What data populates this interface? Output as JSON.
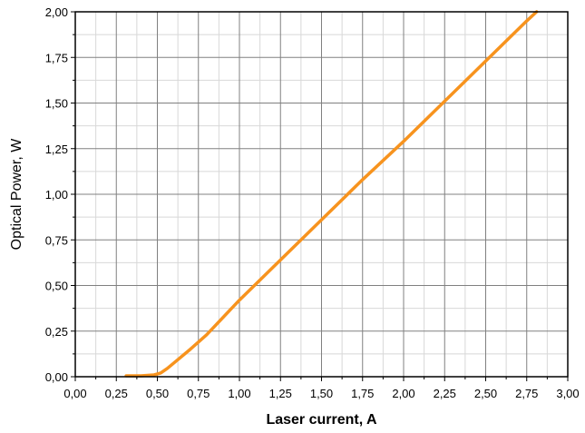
{
  "chart_data": {
    "type": "line",
    "xlabel": "Laser current, A",
    "ylabel": "Optical Power, W",
    "xlim": [
      0,
      3
    ],
    "ylim": [
      0,
      2
    ],
    "x_ticks": [
      "0,00",
      "0,25",
      "0,50",
      "0,75",
      "1,00",
      "1,25",
      "1,50",
      "1,75",
      "2,00",
      "2,25",
      "2,50",
      "2,75",
      "3,00"
    ],
    "y_ticks": [
      "0,00",
      "0,25",
      "0,50",
      "0,75",
      "1,00",
      "1,25",
      "1,50",
      "1,75",
      "2,00"
    ],
    "x_tick_values": [
      0,
      0.25,
      0.5,
      0.75,
      1.0,
      1.25,
      1.5,
      1.75,
      2.0,
      2.25,
      2.5,
      2.75,
      3.0
    ],
    "y_tick_values": [
      0,
      0.25,
      0.5,
      0.75,
      1.0,
      1.25,
      1.5,
      1.75,
      2.0
    ],
    "grid": true,
    "minor_grid": true,
    "series": [
      {
        "color": "#f7931e",
        "x": [
          0.31,
          0.4,
          0.48,
          0.52,
          0.56,
          0.62,
          0.7,
          0.8,
          1.0,
          1.25,
          1.5,
          1.75,
          2.0,
          2.25,
          2.5,
          2.75,
          2.81
        ],
        "y": [
          0.005,
          0.005,
          0.01,
          0.02,
          0.045,
          0.09,
          0.15,
          0.23,
          0.42,
          0.64,
          0.86,
          1.08,
          1.29,
          1.51,
          1.73,
          1.95,
          2.0
        ]
      }
    ]
  }
}
